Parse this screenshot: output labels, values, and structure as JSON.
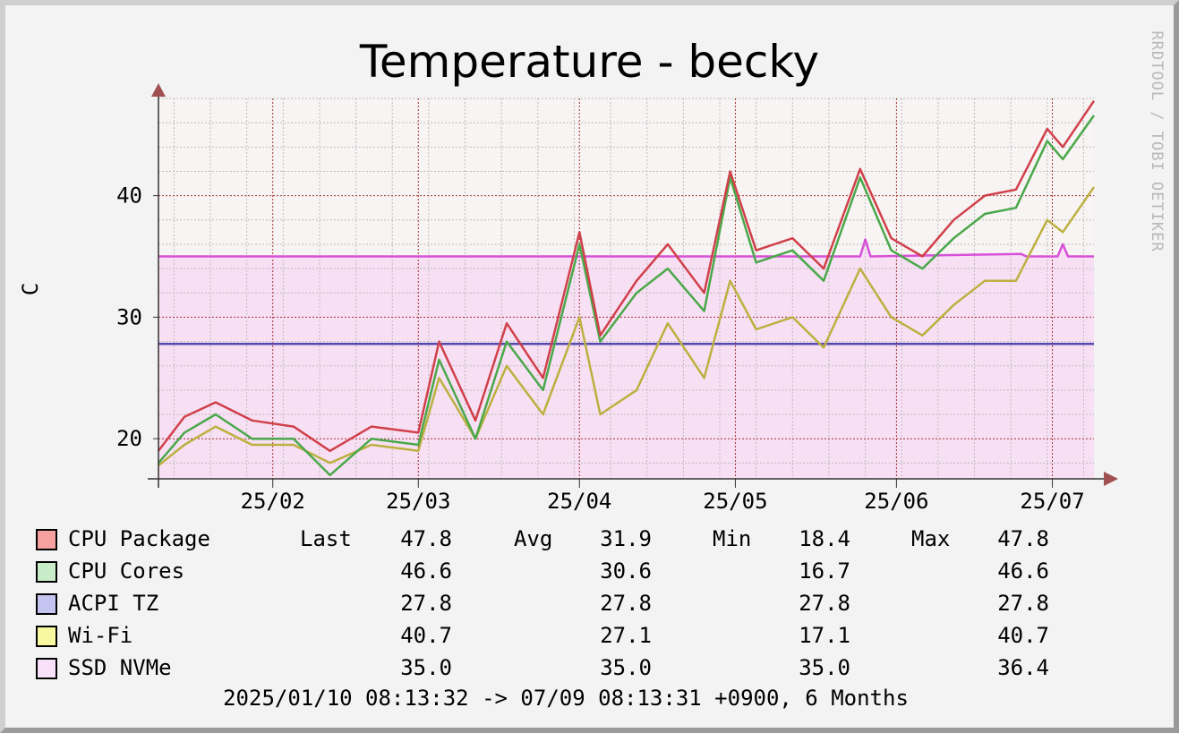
{
  "chart_data": {
    "type": "line",
    "title": "Temperature - becky",
    "watermark": "RRDTOOL / TOBI OETIKER",
    "ylabel": "C",
    "y_ticks": [
      20,
      30,
      40
    ],
    "x_ticks": [
      "25/02",
      "25/03",
      "25/04",
      "25/05",
      "25/06",
      "25/07"
    ],
    "ylim": [
      16.7,
      48
    ],
    "x_range": [
      "2025-01-10",
      "2025-07-09"
    ],
    "x_tick_dates": [
      "2025-02-01",
      "2025-03-01",
      "2025-04-01",
      "2025-05-01",
      "2025-06-01",
      "2025-07-01"
    ],
    "grid": true,
    "legend_placement": "bottom",
    "series": [
      {
        "name": "CPU Package",
        "color": "#d0404a",
        "swatch": "#f7a0a0",
        "last": "47.8",
        "avg": "31.9",
        "min": "18.4",
        "max": "47.8",
        "x": [
          "2025-01-10",
          "2025-01-15",
          "2025-01-21",
          "2025-01-28",
          "2025-02-05",
          "2025-02-12",
          "2025-02-20",
          "2025-03-01",
          "2025-03-05",
          "2025-03-12",
          "2025-03-18",
          "2025-03-25",
          "2025-04-01",
          "2025-04-05",
          "2025-04-12",
          "2025-04-18",
          "2025-04-25",
          "2025-04-30",
          "2025-05-05",
          "2025-05-12",
          "2025-05-18",
          "2025-05-25",
          "2025-05-31",
          "2025-06-06",
          "2025-06-12",
          "2025-06-18",
          "2025-06-24",
          "2025-06-30",
          "2025-07-03",
          "2025-07-09"
        ],
        "values": [
          19,
          21.8,
          23,
          21.5,
          21,
          19,
          21,
          20.5,
          28,
          21.5,
          29.5,
          25,
          37,
          28.5,
          33,
          36,
          32,
          42,
          35.5,
          36.5,
          34,
          42.2,
          36.5,
          35,
          38,
          40,
          40.5,
          45.5,
          44,
          47.8
        ]
      },
      {
        "name": "CPU Cores",
        "color": "#4aa84a",
        "swatch": "#c8ecc8",
        "last": "46.6",
        "avg": "30.6",
        "min": "16.7",
        "max": "46.6",
        "x": [
          "2025-01-10",
          "2025-01-15",
          "2025-01-21",
          "2025-01-28",
          "2025-02-05",
          "2025-02-12",
          "2025-02-20",
          "2025-03-01",
          "2025-03-05",
          "2025-03-12",
          "2025-03-18",
          "2025-03-25",
          "2025-04-01",
          "2025-04-05",
          "2025-04-12",
          "2025-04-18",
          "2025-04-25",
          "2025-04-30",
          "2025-05-05",
          "2025-05-12",
          "2025-05-18",
          "2025-05-25",
          "2025-05-31",
          "2025-06-06",
          "2025-06-12",
          "2025-06-18",
          "2025-06-24",
          "2025-06-30",
          "2025-07-03",
          "2025-07-09"
        ],
        "values": [
          18,
          20.5,
          22,
          20,
          20,
          17,
          20,
          19.5,
          26.5,
          20,
          28,
          24,
          36,
          28,
          32,
          34,
          30.5,
          41.5,
          34.5,
          35.5,
          33,
          41.5,
          35.5,
          34,
          36.5,
          38.5,
          39,
          44.5,
          43,
          46.6
        ]
      },
      {
        "name": "ACPI TZ",
        "color": "#5548b0",
        "swatch": "#c4c4f0",
        "last": "27.8",
        "avg": "27.8",
        "min": "27.8",
        "max": "27.8",
        "x": [
          "2025-01-10",
          "2025-07-09"
        ],
        "values": [
          27.8,
          27.8
        ]
      },
      {
        "name": "Wi-Fi",
        "color": "#bcb040",
        "swatch": "#f8f8a0",
        "last": "40.7",
        "avg": "27.1",
        "min": "17.1",
        "max": "40.7",
        "x": [
          "2025-01-10",
          "2025-01-15",
          "2025-01-21",
          "2025-01-28",
          "2025-02-05",
          "2025-02-12",
          "2025-02-20",
          "2025-03-01",
          "2025-03-05",
          "2025-03-12",
          "2025-03-18",
          "2025-03-25",
          "2025-04-01",
          "2025-04-05",
          "2025-04-12",
          "2025-04-18",
          "2025-04-25",
          "2025-04-30",
          "2025-05-05",
          "2025-05-12",
          "2025-05-18",
          "2025-05-25",
          "2025-05-31",
          "2025-06-06",
          "2025-06-12",
          "2025-06-18",
          "2025-06-24",
          "2025-06-30",
          "2025-07-03",
          "2025-07-09"
        ],
        "values": [
          17.8,
          19.5,
          21,
          19.5,
          19.5,
          18,
          19.5,
          19,
          25,
          20,
          26,
          22,
          30,
          22,
          24,
          29.5,
          25,
          33,
          29,
          30,
          27.5,
          34,
          30,
          28.5,
          31,
          33,
          33,
          38,
          37,
          40.7
        ]
      },
      {
        "name": "SSD NVMe",
        "color": "#d850d8",
        "swatch": "#f8e0f8",
        "last": "35.0",
        "avg": "35.0",
        "min": "35.0",
        "max": "36.4",
        "x": [
          "2025-01-10",
          "2025-05-25",
          "2025-05-26",
          "2025-05-27",
          "2025-06-25",
          "2025-06-26",
          "2025-07-02",
          "2025-07-03",
          "2025-07-04",
          "2025-07-09"
        ],
        "values": [
          35.0,
          35.0,
          36.4,
          35.0,
          35.2,
          35.0,
          35.0,
          36.0,
          35.0,
          35.0
        ]
      }
    ]
  },
  "legend": {
    "last_label": "Last",
    "avg_label": "Avg",
    "min_label": "Min",
    "max_label": "Max"
  },
  "footer": "2025/01/10 08:13:32 -> 07/09 08:13:31 +0900, 6 Months"
}
